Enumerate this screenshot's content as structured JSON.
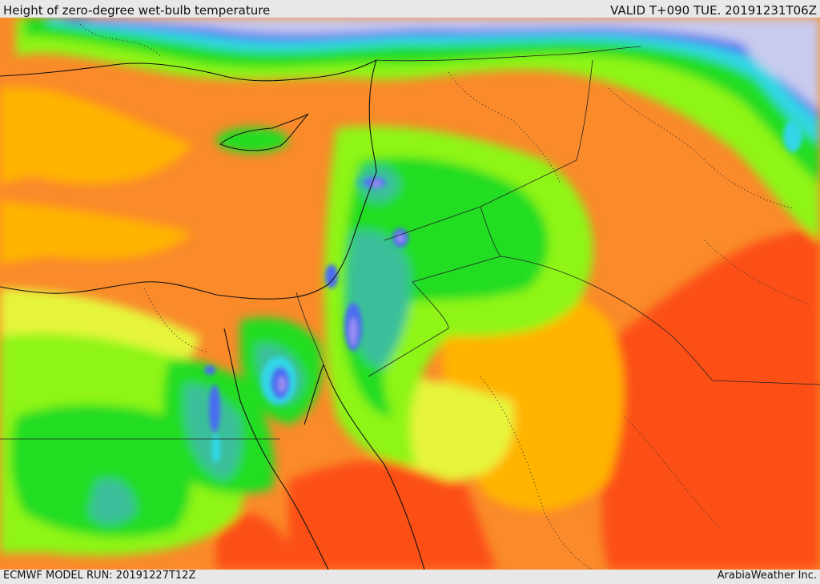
{
  "header": {
    "title": "Height of zero-degree wet-bulb temperature",
    "valid_time": "VALID T+090 TUE. 20191231T06Z"
  },
  "footer": {
    "model_run": "ECMWF MODEL RUN: 20191227T12Z",
    "credit": "ArabiaWeather Inc."
  },
  "colors": {
    "sea_level_or_below": "#c8cbee",
    "blue": "#4a6cf0",
    "violet": "#9a8ef2",
    "cyan": "#33d6e6",
    "teal": "#3bbf9a",
    "green": "#22dd22",
    "lime": "#8ef518",
    "yellow": "#e6f53a",
    "orange_light": "#ffb400",
    "orange": "#fa8a2a",
    "red_orange": "#fc5014"
  }
}
